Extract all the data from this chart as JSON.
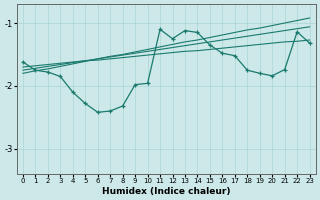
{
  "xlabel": "Humidex (Indice chaleur)",
  "ylabel": "",
  "bg_color": "#cce8e8",
  "line_color": "#1a7a6e",
  "x_data": [
    0,
    1,
    2,
    3,
    4,
    5,
    6,
    7,
    8,
    9,
    10,
    11,
    12,
    13,
    14,
    15,
    16,
    17,
    18,
    19,
    20,
    21,
    22,
    23
  ],
  "y_main": [
    -1.62,
    -1.75,
    -1.78,
    -1.85,
    -2.1,
    -2.28,
    -2.42,
    -2.4,
    -2.32,
    -1.98,
    -1.96,
    -1.1,
    -1.25,
    -1.12,
    -1.15,
    -1.35,
    -1.48,
    -1.52,
    -1.75,
    -1.8,
    -1.84,
    -1.74,
    -1.14,
    -1.32
  ],
  "y_line1": [
    -1.8,
    -1.76,
    -1.73,
    -1.69,
    -1.65,
    -1.61,
    -1.57,
    -1.53,
    -1.5,
    -1.46,
    -1.42,
    -1.38,
    -1.34,
    -1.3,
    -1.27,
    -1.23,
    -1.19,
    -1.15,
    -1.11,
    -1.08,
    -1.04,
    -1.0,
    -0.96,
    -0.92
  ],
  "y_line2": [
    -1.75,
    -1.72,
    -1.69,
    -1.66,
    -1.63,
    -1.6,
    -1.57,
    -1.54,
    -1.51,
    -1.48,
    -1.45,
    -1.42,
    -1.39,
    -1.36,
    -1.33,
    -1.3,
    -1.27,
    -1.24,
    -1.21,
    -1.18,
    -1.15,
    -1.12,
    -1.09,
    -1.06
  ],
  "y_line3": [
    -1.7,
    -1.68,
    -1.66,
    -1.64,
    -1.62,
    -1.6,
    -1.59,
    -1.57,
    -1.55,
    -1.53,
    -1.51,
    -1.49,
    -1.47,
    -1.45,
    -1.44,
    -1.42,
    -1.4,
    -1.38,
    -1.36,
    -1.34,
    -1.32,
    -1.3,
    -1.29,
    -1.27
  ],
  "ylim": [
    -3.4,
    -0.7
  ],
  "yticks": [
    -3,
    -2,
    -1
  ],
  "xlim": [
    -0.5,
    23.5
  ],
  "xticks": [
    0,
    1,
    2,
    3,
    4,
    5,
    6,
    7,
    8,
    9,
    10,
    11,
    12,
    13,
    14,
    15,
    16,
    17,
    18,
    19,
    20,
    21,
    22,
    23
  ]
}
